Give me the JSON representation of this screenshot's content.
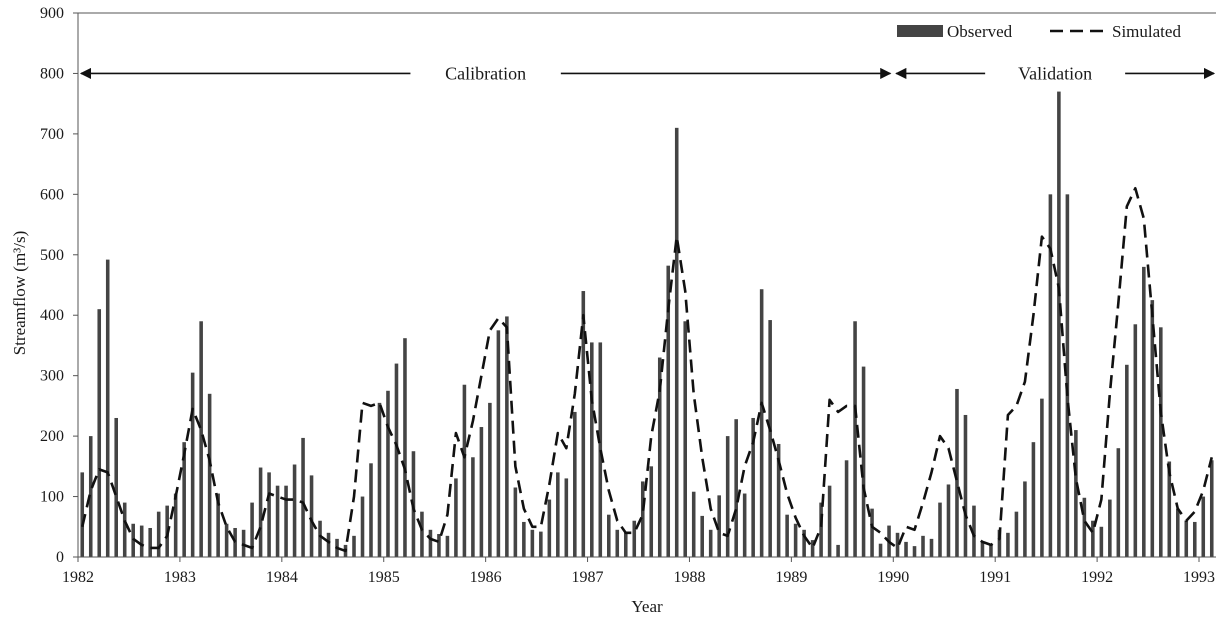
{
  "chart_data": {
    "type": "bar",
    "xlabel": "Year",
    "ylabel": "Streamflow (m³/s)",
    "ylim": [
      0,
      900
    ],
    "yticks": [
      0,
      100,
      200,
      300,
      400,
      500,
      600,
      700,
      800,
      900
    ],
    "x_start_year": 1982,
    "months_per_tick": 12,
    "xtick_labels": [
      "1982",
      "1983",
      "1984",
      "1985",
      "1986",
      "1987",
      "1988",
      "1989",
      "1990",
      "1991",
      "1992",
      "1993"
    ],
    "grid": false,
    "legend_position": "top-right",
    "colors": {
      "observed": "#444444",
      "simulated": "#111111",
      "axis": "#555555"
    },
    "legend": [
      {
        "label": "Observed",
        "style": "bar"
      },
      {
        "label": "Simulated",
        "style": "dashed-line"
      }
    ],
    "annotations": [
      {
        "text": "Calibration",
        "x_from": 1982,
        "x_to": 1990,
        "y": 800
      },
      {
        "text": "Validation",
        "x_from": 1990,
        "x_to": 1994,
        "y": 800
      }
    ],
    "series": [
      {
        "name": "Observed",
        "type": "bar",
        "values": [
          140,
          200,
          410,
          492,
          230,
          90,
          55,
          52,
          48,
          75,
          85,
          105,
          190,
          305,
          390,
          270,
          105,
          55,
          48,
          45,
          90,
          148,
          140,
          118,
          118,
          153,
          197,
          135,
          60,
          40,
          30,
          20,
          35,
          100,
          155,
          255,
          275,
          320,
          362,
          175,
          75,
          45,
          38,
          35,
          130,
          285,
          165,
          215,
          255,
          375,
          398,
          115,
          58,
          45,
          42,
          95,
          140,
          130,
          240,
          440,
          355,
          355,
          70,
          45,
          42,
          60,
          125,
          150,
          330,
          482,
          710,
          390,
          108,
          68,
          45,
          102,
          200,
          228,
          105,
          230,
          443,
          392,
          187,
          70,
          55,
          45,
          28,
          90,
          118,
          20,
          160,
          390,
          315,
          80,
          22,
          52,
          40,
          25,
          18,
          35,
          30,
          90,
          120,
          278,
          235,
          85,
          25,
          20,
          45,
          40,
          75,
          125,
          190,
          262,
          600,
          770,
          600,
          210,
          98,
          60,
          50,
          95,
          180,
          318,
          385,
          480,
          425,
          380,
          158,
          80,
          60,
          58,
          100,
          160
        ]
      },
      {
        "name": "Simulated",
        "type": "line",
        "style": "dashed",
        "values": [
          50,
          110,
          145,
          140,
          100,
          60,
          30,
          20,
          15,
          15,
          35,
          100,
          170,
          245,
          210,
          160,
          90,
          50,
          25,
          20,
          15,
          50,
          105,
          100,
          95,
          95,
          90,
          60,
          35,
          25,
          15,
          10,
          100,
          255,
          250,
          255,
          215,
          185,
          145,
          80,
          45,
          30,
          25,
          70,
          205,
          165,
          225,
          300,
          375,
          395,
          380,
          150,
          80,
          50,
          50,
          120,
          205,
          180,
          270,
          400,
          260,
          180,
          110,
          60,
          40,
          40,
          70,
          200,
          275,
          410,
          530,
          440,
          270,
          165,
          80,
          40,
          35,
          80,
          150,
          190,
          255,
          210,
          160,
          105,
          65,
          35,
          15,
          50,
          260,
          240,
          250,
          250,
          115,
          50,
          40,
          25,
          15,
          50,
          45,
          90,
          140,
          200,
          180,
          125,
          70,
          35,
          25,
          20,
          30,
          235,
          250,
          290,
          400,
          530,
          510,
          445,
          265,
          130,
          60,
          40,
          95,
          270,
          420,
          580,
          610,
          560,
          400,
          240,
          140,
          80,
          60,
          75,
          110,
          165
        ]
      }
    ]
  }
}
